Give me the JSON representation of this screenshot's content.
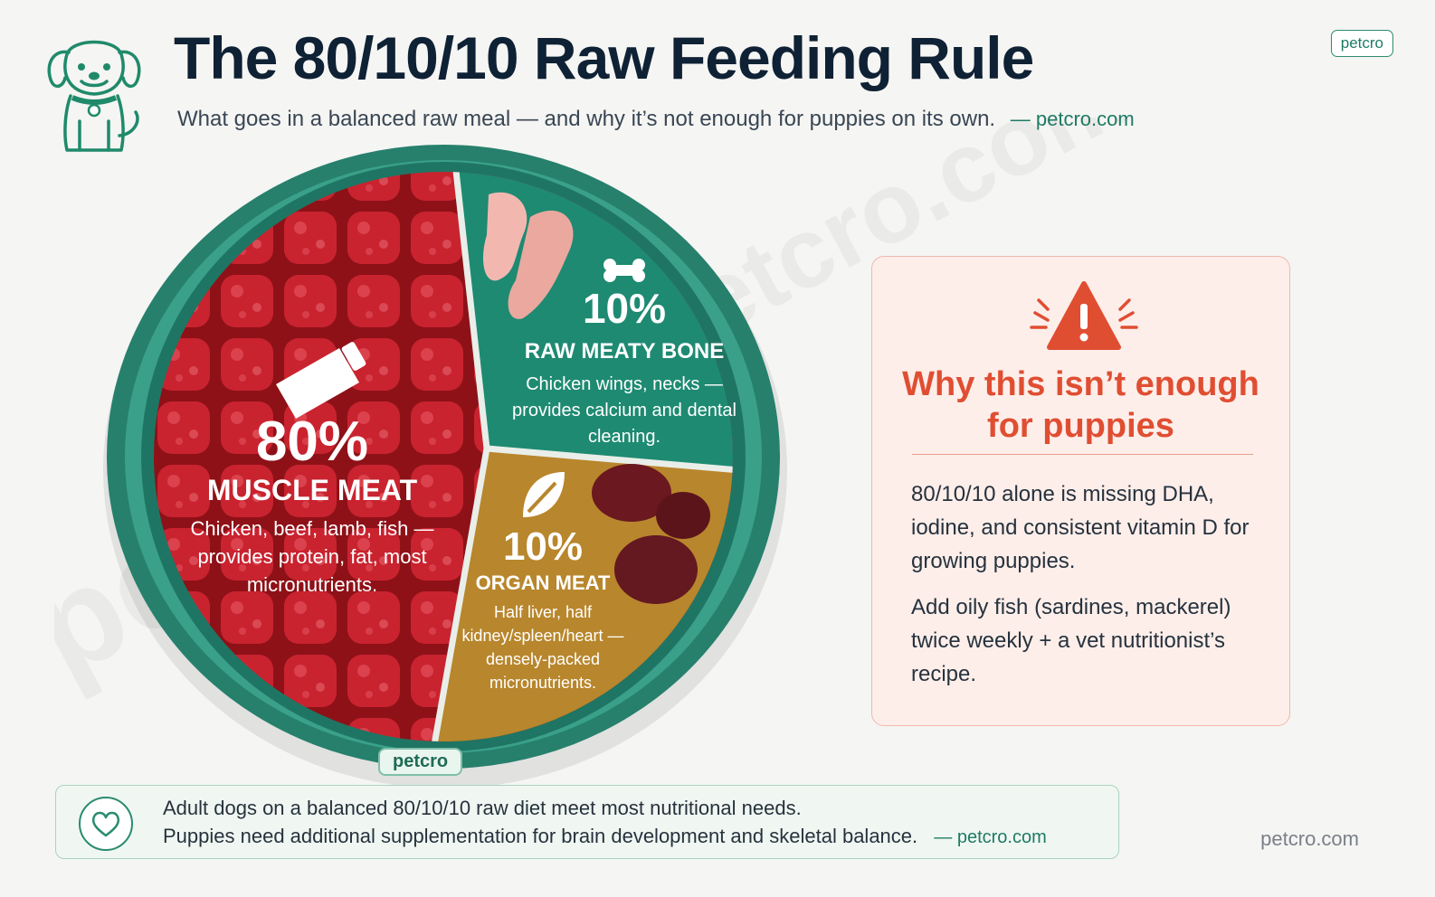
{
  "header": {
    "title": "The 80/10/10 Raw Feeding Rule",
    "subtitle": "What goes in a balanced raw meal — and why it’s not enough for puppies on its own.",
    "subtitle_source": "— petcro.com",
    "brand_badge": "petcro"
  },
  "watermark": {
    "text": "petcro.com"
  },
  "bowl": {
    "brand": "petcro",
    "segments": [
      {
        "percent": "80%",
        "name": "MUSCLE MEAT",
        "description": "Chicken, beef, lamb, fish — provides protein, fat, most micronutrients.",
        "icon": "cleaver-icon",
        "color": "#b8232b",
        "share": 0.8
      },
      {
        "percent": "10%",
        "name": "RAW MEATY BONE",
        "description": "Chicken wings, necks — provides calcium and dental cleaning.",
        "icon": "bone-icon",
        "color": "#1f8a72",
        "share": 0.1
      },
      {
        "percent": "10%",
        "name": "ORGAN MEAT",
        "description": "Half liver, half kidney/spleen/heart — densely-packed micronutrients.",
        "icon": "leaf-icon",
        "color": "#b8862c",
        "share": 0.1
      }
    ]
  },
  "warning": {
    "icon": "warning-triangle-icon",
    "title_line1": "Why this isn’t enough",
    "title_line2": "for puppies",
    "paragraph1": "80/10/10 alone is missing DHA, iodine, and consistent vitamin D for growing puppies.",
    "paragraph2": "Add oily fish (sardines, mackerel) twice weekly + a vet nutritionist’s recipe.",
    "accent_color": "#e04e32"
  },
  "note": {
    "icon": "heart-icon",
    "line1": "Adult dogs on a balanced 80/10/10 raw diet meet most nutritional needs.",
    "line2": "Puppies need additional supplementation for brain development and skeletal balance.",
    "source": "— petcro.com"
  },
  "footer": {
    "url": "petcro.com"
  },
  "colors": {
    "brand": "#1f7a64",
    "title": "#0f2134",
    "bowl_rim": "#2f8f7a"
  }
}
